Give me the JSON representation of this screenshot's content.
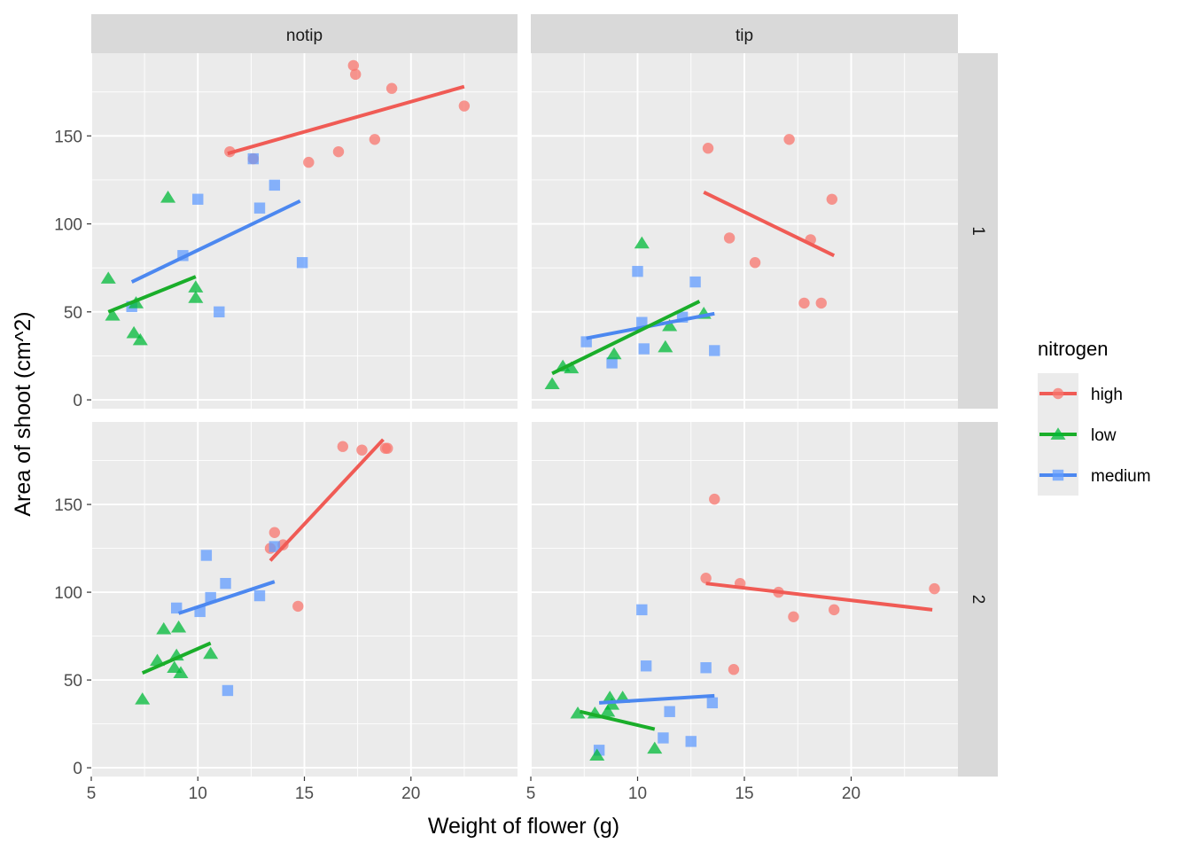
{
  "chart_data": {
    "type": "scatter",
    "title": "",
    "xlabel": "Weight of flower (g)",
    "ylabel": "Area of shoot (cm^2)",
    "xlim": [
      5,
      25
    ],
    "ylim": [
      0,
      200
    ],
    "x_ticks": [
      5,
      10,
      15,
      20
    ],
    "y_ticks": [
      0,
      50,
      100,
      150
    ],
    "facet_cols": [
      "notip",
      "tip"
    ],
    "facet_rows": [
      "1",
      "2"
    ],
    "legend": {
      "title": "nitrogen",
      "placement": "right",
      "entries": [
        {
          "key": "high",
          "label": "high",
          "color": "#f8766d",
          "shape": "circle"
        },
        {
          "key": "low",
          "label": "low",
          "color": "#00ba38",
          "shape": "triangle"
        },
        {
          "key": "medium",
          "label": "medium",
          "color": "#619cff",
          "shape": "square"
        }
      ]
    },
    "line_colors": {
      "high": "#f05b55",
      "low": "#1aae2a",
      "medium": "#4c88f0"
    },
    "panels": [
      {
        "col": "notip",
        "row": "1",
        "points": {
          "high": [
            [
              11.5,
              141
            ],
            [
              12.6,
              137
            ],
            [
              15.2,
              135
            ],
            [
              16.6,
              141
            ],
            [
              17.3,
              190
            ],
            [
              17.4,
              185
            ],
            [
              18.3,
              148
            ],
            [
              19.1,
              177
            ],
            [
              22.5,
              167
            ]
          ],
          "medium": [
            [
              6.9,
              53
            ],
            [
              9.3,
              82
            ],
            [
              10.0,
              114
            ],
            [
              11.0,
              50
            ],
            [
              12.6,
              137
            ],
            [
              12.9,
              109
            ],
            [
              13.6,
              122
            ],
            [
              14.9,
              78
            ]
          ],
          "low": [
            [
              5.8,
              69
            ],
            [
              6.0,
              48
            ],
            [
              7.0,
              38
            ],
            [
              7.1,
              55
            ],
            [
              7.3,
              34
            ],
            [
              8.6,
              115
            ],
            [
              9.9,
              64
            ],
            [
              9.9,
              58
            ]
          ]
        },
        "fits": {
          "high": [
            [
              11.4,
              140
            ],
            [
              22.5,
              178
            ]
          ],
          "medium": [
            [
              6.9,
              67
            ],
            [
              14.8,
              113
            ]
          ],
          "low": [
            [
              5.8,
              50
            ],
            [
              9.9,
              70
            ]
          ]
        }
      },
      {
        "col": "tip",
        "row": "1",
        "points": {
          "high": [
            [
              13.3,
              143
            ],
            [
              14.3,
              92
            ],
            [
              15.5,
              78
            ],
            [
              17.1,
              148
            ],
            [
              17.8,
              55
            ],
            [
              18.1,
              91
            ],
            [
              18.6,
              55
            ],
            [
              19.1,
              114
            ]
          ],
          "medium": [
            [
              7.6,
              33
            ],
            [
              8.8,
              21
            ],
            [
              10.0,
              73
            ],
            [
              10.2,
              44
            ],
            [
              10.3,
              29
            ],
            [
              12.1,
              47
            ],
            [
              12.7,
              67
            ],
            [
              13.6,
              28
            ]
          ],
          "low": [
            [
              6.0,
              9
            ],
            [
              6.5,
              19
            ],
            [
              6.9,
              18
            ],
            [
              8.9,
              26
            ],
            [
              10.2,
              89
            ],
            [
              11.3,
              30
            ],
            [
              11.5,
              42
            ],
            [
              13.1,
              49
            ]
          ]
        },
        "fits": {
          "high": [
            [
              13.1,
              118
            ],
            [
              19.2,
              82
            ]
          ],
          "medium": [
            [
              7.6,
              35
            ],
            [
              13.6,
              49
            ]
          ],
          "low": [
            [
              6.0,
              15
            ],
            [
              12.9,
              56
            ]
          ]
        }
      },
      {
        "col": "notip",
        "row": "2",
        "points": {
          "high": [
            [
              13.4,
              125
            ],
            [
              13.6,
              134
            ],
            [
              14.0,
              127
            ],
            [
              14.7,
              92
            ],
            [
              16.8,
              183
            ],
            [
              17.7,
              181
            ],
            [
              18.8,
              182
            ],
            [
              18.9,
              182
            ]
          ],
          "medium": [
            [
              9.0,
              91
            ],
            [
              10.1,
              89
            ],
            [
              10.4,
              121
            ],
            [
              10.6,
              97
            ],
            [
              11.3,
              105
            ],
            [
              11.4,
              44
            ],
            [
              12.9,
              98
            ],
            [
              13.6,
              126
            ]
          ],
          "low": [
            [
              7.4,
              39
            ],
            [
              8.1,
              61
            ],
            [
              8.4,
              79
            ],
            [
              8.9,
              57
            ],
            [
              9.0,
              64
            ],
            [
              9.1,
              80
            ],
            [
              9.2,
              54
            ],
            [
              10.6,
              65
            ]
          ]
        },
        "fits": {
          "high": [
            [
              13.4,
              118
            ],
            [
              18.7,
              187
            ]
          ],
          "medium": [
            [
              9.1,
              88
            ],
            [
              13.6,
              106
            ]
          ],
          "low": [
            [
              7.4,
              54
            ],
            [
              10.6,
              71
            ]
          ]
        }
      },
      {
        "col": "tip",
        "row": "2",
        "points": {
          "high": [
            [
              13.2,
              108
            ],
            [
              13.6,
              153
            ],
            [
              14.5,
              56
            ],
            [
              14.8,
              105
            ],
            [
              16.6,
              100
            ],
            [
              17.3,
              86
            ],
            [
              19.2,
              90
            ],
            [
              23.9,
              102
            ]
          ],
          "medium": [
            [
              8.2,
              10
            ],
            [
              10.2,
              90
            ],
            [
              10.4,
              58
            ],
            [
              11.2,
              17
            ],
            [
              11.5,
              32
            ],
            [
              12.5,
              15
            ],
            [
              13.2,
              57
            ],
            [
              13.5,
              37
            ]
          ],
          "low": [
            [
              7.2,
              31
            ],
            [
              8.0,
              31
            ],
            [
              8.1,
              7
            ],
            [
              8.6,
              32
            ],
            [
              8.7,
              40
            ],
            [
              8.8,
              36
            ],
            [
              9.3,
              40
            ],
            [
              10.8,
              11
            ]
          ]
        },
        "fits": {
          "high": [
            [
              13.2,
              105
            ],
            [
              23.8,
              90
            ]
          ],
          "medium": [
            [
              8.2,
              37
            ],
            [
              13.6,
              41
            ]
          ],
          "low": [
            [
              7.3,
              32
            ],
            [
              10.8,
              22
            ]
          ]
        }
      }
    ]
  }
}
